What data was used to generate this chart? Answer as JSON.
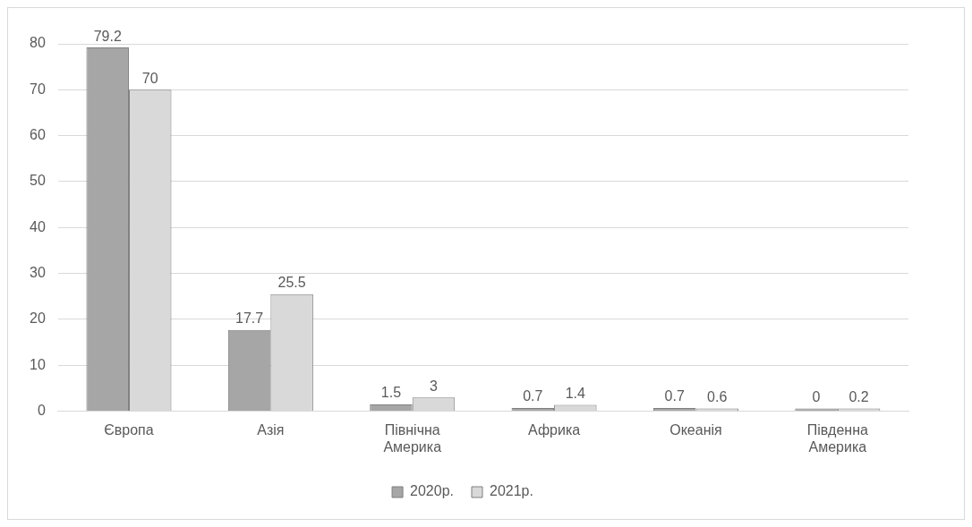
{
  "chart_data": {
    "type": "bar",
    "categories": [
      "Європа",
      "Азія",
      "Північна Америка",
      "Африка",
      "Океанія",
      "Південна Америка"
    ],
    "series": [
      {
        "name": "2020р.",
        "color": "#a6a6a6",
        "values": [
          79.2,
          17.7,
          1.5,
          0.7,
          0.7,
          0
        ]
      },
      {
        "name": "2021р.",
        "color": "#d9d9d9",
        "values": [
          70,
          25.5,
          3,
          1.4,
          0.6,
          0.2
        ]
      }
    ],
    "ylim": [
      0,
      80
    ],
    "yticks": [
      0,
      10,
      20,
      30,
      40,
      50,
      60,
      70,
      80
    ],
    "grid": "y",
    "legend": "bottom",
    "data_labels": true
  }
}
